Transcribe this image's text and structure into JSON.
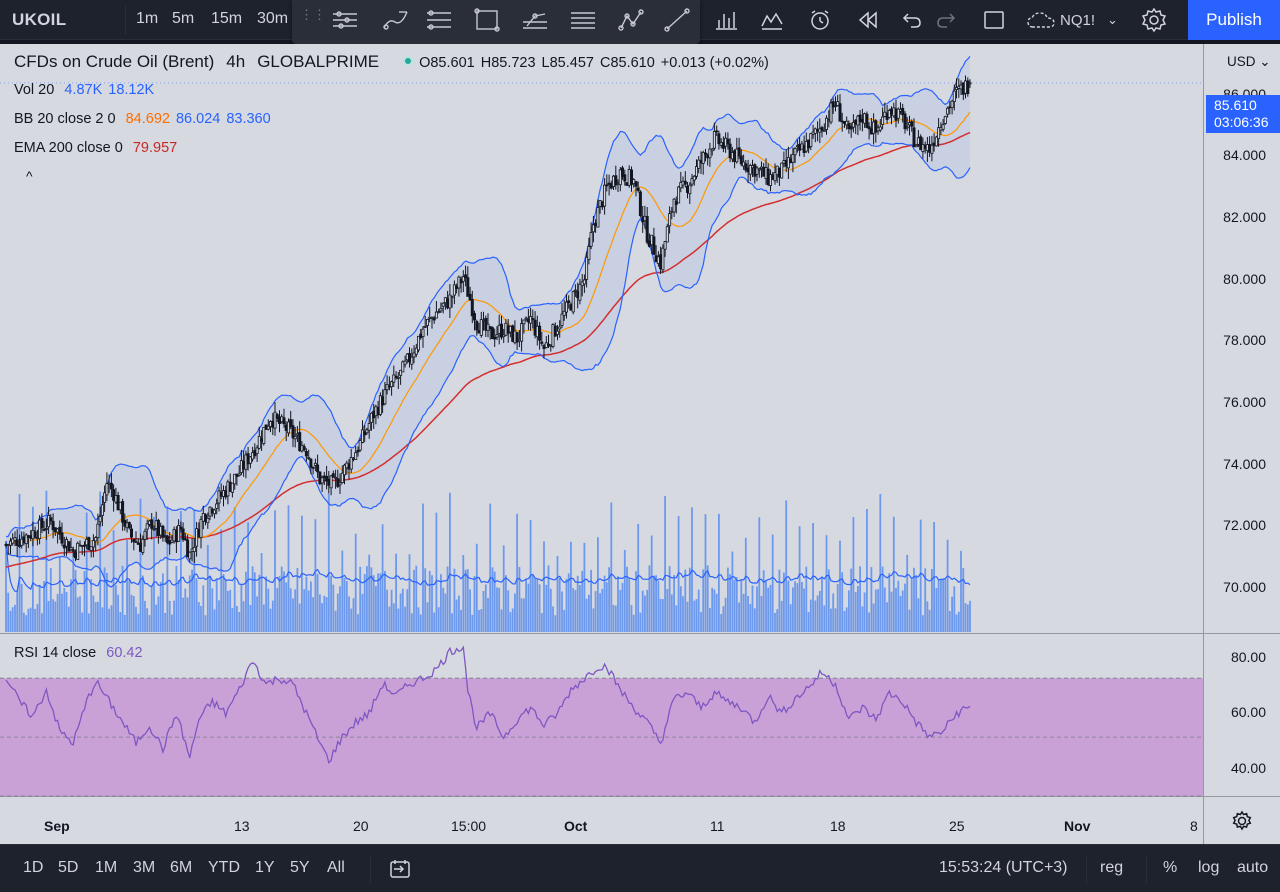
{
  "header": {
    "symbol": "UKOIL",
    "intervals": [
      "1m",
      "5m",
      "15m",
      "30m"
    ],
    "compare_symbol": "NQ1!",
    "publish_label": "Publish"
  },
  "legend": {
    "title": "CFDs on Crude Oil (Brent)",
    "timeframe": "4h",
    "exchange": "GLOBALPRIME",
    "open": "O85.601",
    "high": "H85.723",
    "low": "L85.457",
    "close": "C85.610",
    "change": "+0.013 (+0.02%)",
    "vol_label": "Vol 20",
    "vol_value1": "4.87K",
    "vol_value2": "18.12K",
    "bb_label": "BB 20 close 2 0",
    "bb_basis": "84.692",
    "bb_upper": "86.024",
    "bb_lower": "83.360",
    "ema_label": "EMA 200 close 0",
    "ema_value": "79.957",
    "collapse": "^",
    "rsi_label": "RSI 14 close",
    "rsi_value": "60.42"
  },
  "price_scale": {
    "currency": "USD",
    "labels": [
      "86.000",
      "84.000",
      "82.000",
      "80.000",
      "78.000",
      "76.000",
      "74.000",
      "72.000",
      "70.000"
    ],
    "last_price": "85.610",
    "countdown": "03:06:36",
    "rsi_labels": [
      "80.00",
      "60.00",
      "40.00"
    ]
  },
  "time_axis": {
    "labels": [
      {
        "text": "Sep",
        "bold": true
      },
      {
        "text": "13",
        "bold": false
      },
      {
        "text": "20",
        "bold": false
      },
      {
        "text": "15:00",
        "bold": false
      },
      {
        "text": "Oct",
        "bold": true
      },
      {
        "text": "11",
        "bold": false
      },
      {
        "text": "18",
        "bold": false
      },
      {
        "text": "25",
        "bold": false
      },
      {
        "text": "Nov",
        "bold": true
      },
      {
        "text": "8",
        "bold": false
      }
    ]
  },
  "bottom_bar": {
    "ranges": [
      "1D",
      "5D",
      "1M",
      "3M",
      "6M",
      "YTD",
      "1Y",
      "5Y",
      "All"
    ],
    "clock": "15:53:24 (UTC+3)",
    "session": "reg",
    "percent": "%",
    "log": "log",
    "auto": "auto"
  },
  "colors": {
    "background": "#d6d9e0",
    "bb_band": "#2962ff",
    "bb_basis": "#ff9800",
    "ema": "#d32f2f",
    "volume": "#5b8def",
    "rsi_line": "#7e57c2",
    "rsi_zone": "#c99ad6",
    "accent": "#2962ff"
  },
  "chart_data": {
    "type": "candlestick",
    "symbol": "UKOIL",
    "timeframe": "4h",
    "price_ylim": [
      68.8,
      86.8
    ],
    "rsi_ylim": [
      30,
      85
    ],
    "rsi_bands": [
      30,
      50,
      70
    ],
    "close_waypoints": [
      [
        0,
        71.5
      ],
      [
        10,
        71.8
      ],
      [
        20,
        72.2
      ],
      [
        30,
        71.3
      ],
      [
        40,
        71.7
      ],
      [
        45,
        73.4
      ],
      [
        48,
        73.1
      ],
      [
        55,
        71.8
      ],
      [
        60,
        71.5
      ],
      [
        65,
        72.2
      ],
      [
        72,
        71.5
      ],
      [
        78,
        72.0
      ],
      [
        82,
        71.2
      ],
      [
        88,
        72.4
      ],
      [
        96,
        73.0
      ],
      [
        104,
        73.7
      ],
      [
        112,
        74.6
      ],
      [
        118,
        75.4
      ],
      [
        126,
        75.0
      ],
      [
        134,
        74.4
      ],
      [
        140,
        73.5
      ],
      [
        146,
        73.3
      ],
      [
        152,
        73.9
      ],
      [
        158,
        74.6
      ],
      [
        164,
        75.5
      ],
      [
        170,
        76.2
      ],
      [
        176,
        76.7
      ],
      [
        180,
        77.2
      ],
      [
        186,
        78.1
      ],
      [
        192,
        78.6
      ],
      [
        198,
        79.0
      ],
      [
        204,
        79.7
      ],
      [
        210,
        78.3
      ],
      [
        216,
        77.9
      ],
      [
        222,
        78.1
      ],
      [
        228,
        77.8
      ],
      [
        234,
        78.4
      ],
      [
        240,
        77.5
      ],
      [
        246,
        78.2
      ],
      [
        252,
        78.9
      ],
      [
        258,
        79.6
      ],
      [
        262,
        81.3
      ],
      [
        268,
        82.4
      ],
      [
        274,
        82.9
      ],
      [
        280,
        82.6
      ],
      [
        286,
        81.0
      ],
      [
        292,
        80.1
      ],
      [
        298,
        82.1
      ],
      [
        304,
        82.5
      ],
      [
        310,
        83.2
      ],
      [
        316,
        83.9
      ],
      [
        322,
        83.6
      ],
      [
        328,
        83.2
      ],
      [
        334,
        83.0
      ],
      [
        340,
        82.7
      ],
      [
        346,
        82.9
      ],
      [
        352,
        83.4
      ],
      [
        358,
        83.8
      ],
      [
        364,
        84.3
      ],
      [
        370,
        85.0
      ],
      [
        376,
        84.0
      ],
      [
        382,
        84.6
      ],
      [
        388,
        84.1
      ],
      [
        394,
        84.9
      ],
      [
        400,
        84.5
      ],
      [
        406,
        83.8
      ],
      [
        412,
        83.6
      ],
      [
        418,
        84.6
      ],
      [
        424,
        85.3
      ],
      [
        430,
        85.61
      ]
    ],
    "volume_range": [
      0,
      18000
    ],
    "rsi_waypoints": [
      [
        0,
        70
      ],
      [
        6,
        62
      ],
      [
        12,
        57
      ],
      [
        18,
        66
      ],
      [
        24,
        52
      ],
      [
        30,
        48
      ],
      [
        36,
        62
      ],
      [
        40,
        69
      ],
      [
        46,
        62
      ],
      [
        52,
        55
      ],
      [
        58,
        48
      ],
      [
        64,
        54
      ],
      [
        70,
        46
      ],
      [
        76,
        58
      ],
      [
        82,
        43
      ],
      [
        86,
        56
      ],
      [
        92,
        62
      ],
      [
        98,
        58
      ],
      [
        104,
        66
      ],
      [
        110,
        76
      ],
      [
        116,
        68
      ],
      [
        122,
        70
      ],
      [
        128,
        68
      ],
      [
        134,
        58
      ],
      [
        140,
        48
      ],
      [
        144,
        42
      ],
      [
        150,
        50
      ],
      [
        156,
        55
      ],
      [
        162,
        58
      ],
      [
        168,
        68
      ],
      [
        174,
        64
      ],
      [
        180,
        68
      ],
      [
        186,
        70
      ],
      [
        192,
        73
      ],
      [
        198,
        79
      ],
      [
        204,
        81
      ],
      [
        206,
        66
      ],
      [
        210,
        53
      ],
      [
        216,
        58
      ],
      [
        222,
        50
      ],
      [
        228,
        56
      ],
      [
        234,
        60
      ],
      [
        240,
        54
      ],
      [
        246,
        58
      ],
      [
        252,
        66
      ],
      [
        258,
        70
      ],
      [
        264,
        74
      ],
      [
        268,
        74
      ],
      [
        274,
        66
      ],
      [
        280,
        60
      ],
      [
        286,
        55
      ],
      [
        292,
        48
      ],
      [
        298,
        63
      ],
      [
        304,
        65
      ],
      [
        310,
        60
      ],
      [
        316,
        65
      ],
      [
        322,
        62
      ],
      [
        328,
        60
      ],
      [
        334,
        55
      ],
      [
        340,
        64
      ],
      [
        346,
        58
      ],
      [
        352,
        63
      ],
      [
        358,
        67
      ],
      [
        364,
        72
      ],
      [
        370,
        68
      ],
      [
        376,
        56
      ],
      [
        382,
        60
      ],
      [
        388,
        56
      ],
      [
        394,
        65
      ],
      [
        400,
        62
      ],
      [
        406,
        55
      ],
      [
        412,
        50
      ],
      [
        418,
        52
      ],
      [
        424,
        58
      ],
      [
        430,
        60.42
      ]
    ]
  }
}
